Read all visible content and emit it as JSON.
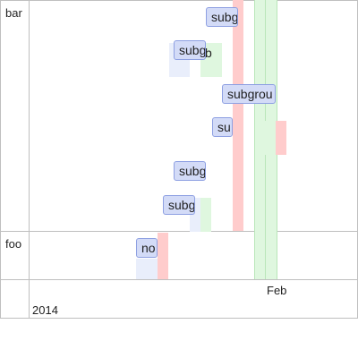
{
  "timeline": {
    "groups": [
      {
        "label": "bar"
      },
      {
        "label": "foo"
      }
    ],
    "axis": {
      "major_label": "2014",
      "minor_label": "Feb"
    },
    "items": [
      {
        "label": "subg"
      },
      {
        "label": "subg"
      },
      {
        "label": "subgrou"
      },
      {
        "label": "su"
      },
      {
        "label": "subg"
      },
      {
        "label": "subg"
      },
      {
        "label": "no"
      },
      {
        "label": "b"
      }
    ],
    "colors": {
      "item_fill": "#d3dbf7",
      "item_border": "#8ea0e2",
      "red_band": "#ffcccc",
      "green_band": "#dff7df",
      "light_blue_band": "#e9eefb",
      "grid_line": "#bfbfbf"
    }
  }
}
